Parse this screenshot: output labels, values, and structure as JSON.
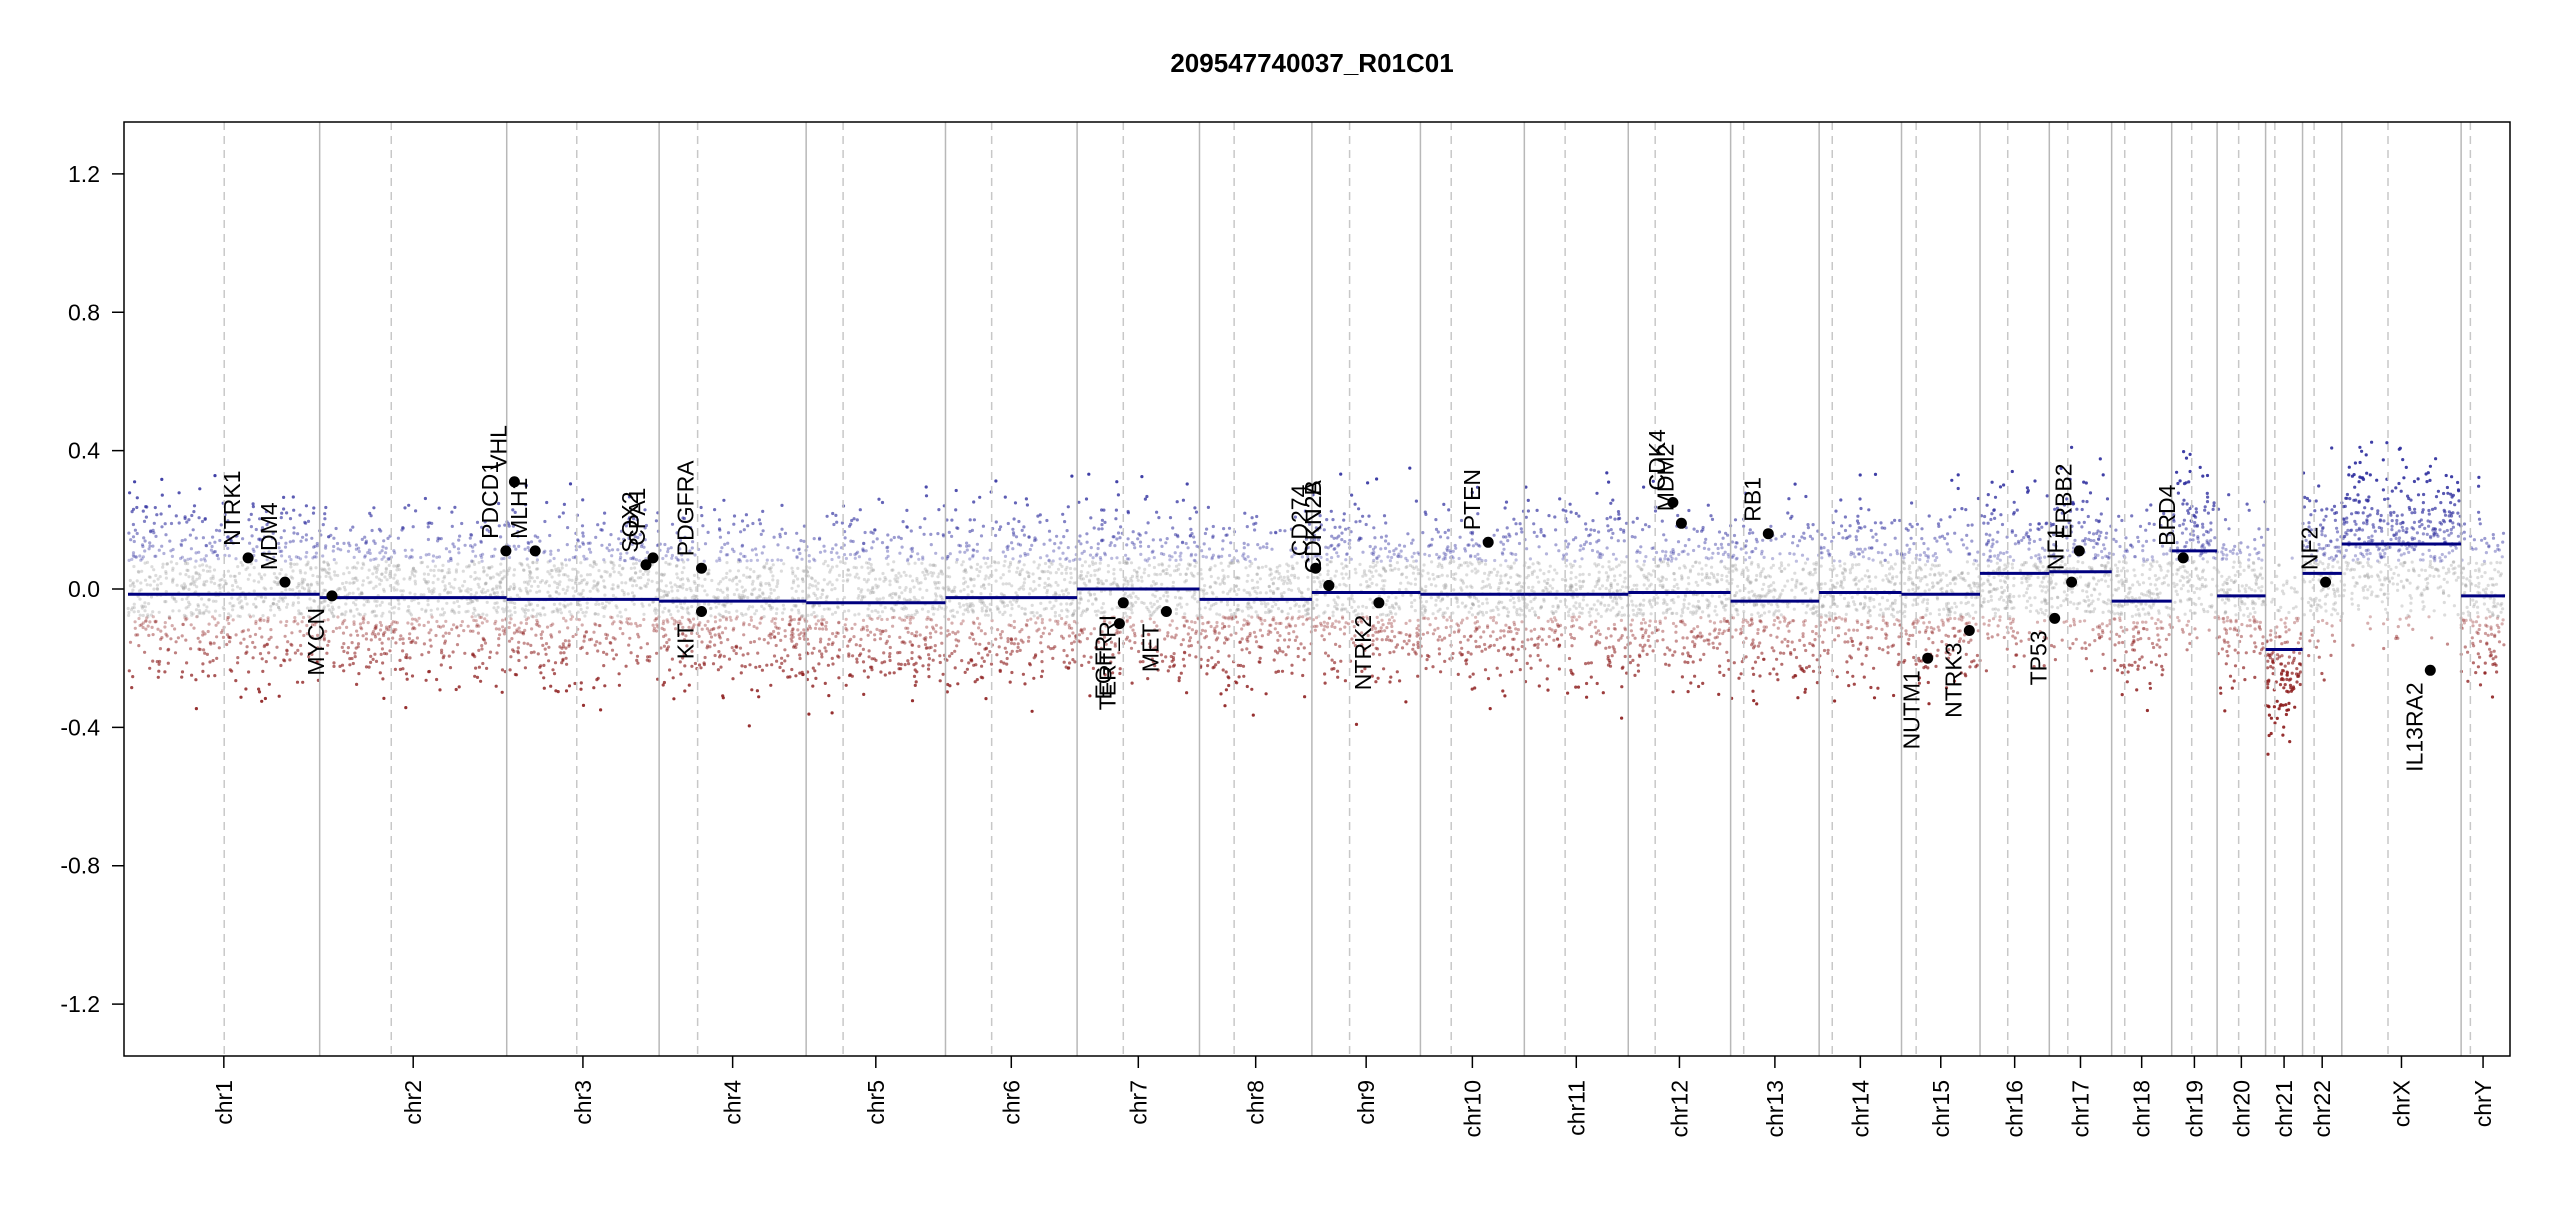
{
  "chart_data": {
    "type": "scatter",
    "title": "209547740037_R01C01",
    "xlabel": "",
    "ylabel": "",
    "ylim": [
      -1.35,
      1.35
    ],
    "yticks": [
      -1.2,
      -0.8,
      -0.4,
      0.0,
      0.4,
      0.8,
      1.2
    ],
    "ytick_labels": [
      "-1.2",
      "-0.8",
      "-0.4",
      "0.0",
      "0.4",
      "0.8",
      "1.2"
    ],
    "grid": false,
    "legend": "none",
    "colors": {
      "segment": "#00007f",
      "gain": "#2a2a9c",
      "loss": "#8b1a1a",
      "neutral": "#9a9a9a",
      "gene_dot": "#000000",
      "chrom_boundary": "#b8b8b8",
      "centromere": "#c8c8c8"
    },
    "chromosomes": [
      {
        "name": "chr1",
        "label": "chr1",
        "size": 249,
        "centro": 125,
        "segments": [
          {
            "from": 0,
            "to": 249,
            "y": -0.015
          }
        ],
        "base": 0.0
      },
      {
        "name": "chr2",
        "label": "chr2",
        "size": 243,
        "centro": 93,
        "segments": [
          {
            "from": 0,
            "to": 243,
            "y": -0.025
          }
        ],
        "base": -0.02
      },
      {
        "name": "chr3",
        "label": "chr3",
        "size": 198,
        "centro": 91,
        "segments": [
          {
            "from": 0,
            "to": 198,
            "y": -0.03
          }
        ],
        "base": -0.02
      },
      {
        "name": "chr4",
        "label": "chr4",
        "size": 191,
        "centro": 50,
        "segments": [
          {
            "from": 0,
            "to": 191,
            "y": -0.035
          }
        ],
        "base": -0.03
      },
      {
        "name": "chr5",
        "label": "chr5",
        "size": 181,
        "centro": 48,
        "segments": [
          {
            "from": 0,
            "to": 181,
            "y": -0.04
          }
        ],
        "base": -0.035
      },
      {
        "name": "chr6",
        "label": "chr6",
        "size": 171,
        "centro": 60,
        "segments": [
          {
            "from": 0,
            "to": 171,
            "y": -0.025
          }
        ],
        "base": -0.02
      },
      {
        "name": "chr7",
        "label": "chr7",
        "size": 159,
        "centro": 60,
        "segments": [
          {
            "from": 0,
            "to": 159,
            "y": 0.0
          }
        ],
        "base": 0.0
      },
      {
        "name": "chr8",
        "label": "chr8",
        "size": 146,
        "centro": 45,
        "segments": [
          {
            "from": 0,
            "to": 146,
            "y": -0.03
          }
        ],
        "base": -0.03
      },
      {
        "name": "chr9",
        "label": "chr9",
        "size": 141,
        "centro": 49,
        "segments": [
          {
            "from": 0,
            "to": 141,
            "y": -0.01
          }
        ],
        "base": -0.01
      },
      {
        "name": "chr10",
        "label": "chr10",
        "size": 135,
        "centro": 40,
        "segments": [
          {
            "from": 0,
            "to": 135,
            "y": -0.015
          }
        ],
        "base": -0.01
      },
      {
        "name": "chr11",
        "label": "chr11",
        "size": 135,
        "centro": 53,
        "segments": [
          {
            "from": 0,
            "to": 135,
            "y": -0.015
          }
        ],
        "base": -0.01
      },
      {
        "name": "chr12",
        "label": "chr12",
        "size": 133,
        "centro": 35,
        "segments": [
          {
            "from": 0,
            "to": 133,
            "y": -0.01
          }
        ],
        "base": -0.01
      },
      {
        "name": "chr13",
        "label": "chr13",
        "size": 115,
        "centro": 17,
        "segments": [
          {
            "from": 0,
            "to": 115,
            "y": -0.035
          }
        ],
        "base": -0.03
      },
      {
        "name": "chr14",
        "label": "chr14",
        "size": 107,
        "centro": 17,
        "segments": [
          {
            "from": 0,
            "to": 107,
            "y": -0.01
          }
        ],
        "base": -0.01
      },
      {
        "name": "chr15",
        "label": "chr15",
        "size": 102,
        "centro": 19,
        "segments": [
          {
            "from": 0,
            "to": 102,
            "y": -0.015
          }
        ],
        "base": -0.015
      },
      {
        "name": "chr16",
        "label": "chr16",
        "size": 90,
        "centro": 36,
        "segments": [
          {
            "from": 0,
            "to": 90,
            "y": 0.045
          }
        ],
        "base": 0.04
      },
      {
        "name": "chr17",
        "label": "chr17",
        "size": 81,
        "centro": 24,
        "segments": [
          {
            "from": 0,
            "to": 81,
            "y": 0.05
          }
        ],
        "base": 0.05
      },
      {
        "name": "chr18",
        "label": "chr18",
        "size": 78,
        "centro": 17,
        "segments": [
          {
            "from": 0,
            "to": 78,
            "y": -0.035
          }
        ],
        "base": -0.03
      },
      {
        "name": "chr19",
        "label": "chr19",
        "size": 59,
        "centro": 26,
        "segments": [
          {
            "from": 0,
            "to": 59,
            "y": 0.11
          }
        ],
        "base": 0.1
      },
      {
        "name": "chr20",
        "label": "chr20",
        "size": 63,
        "centro": 28,
        "segments": [
          {
            "from": 0,
            "to": 63,
            "y": -0.02
          }
        ],
        "base": -0.02
      },
      {
        "name": "chr21",
        "label": "chr21",
        "size": 48,
        "centro": 12,
        "segments": [
          {
            "from": 0,
            "to": 48,
            "y": -0.175
          }
        ],
        "base": -0.18
      },
      {
        "name": "chr22",
        "label": "chr22",
        "size": 51,
        "centro": 15,
        "segments": [
          {
            "from": 0,
            "to": 51,
            "y": 0.045
          }
        ],
        "base": 0.04
      },
      {
        "name": "chrX",
        "label": "chrX",
        "size": 155,
        "centro": 60,
        "segments": [
          {
            "from": 0,
            "to": 155,
            "y": 0.13
          }
        ],
        "base": 0.13
      },
      {
        "name": "chrY",
        "label": "chrY",
        "size": 57,
        "centro": 12,
        "segments": [
          {
            "from": 0,
            "to": 57,
            "y": -0.02
          }
        ],
        "base": -0.02
      }
    ],
    "genes": [
      {
        "name": "NTRK1",
        "chr": "chr1",
        "pos": 156,
        "y": 0.09,
        "label_side": "above"
      },
      {
        "name": "MDM4",
        "chr": "chr1",
        "pos": 204,
        "y": 0.02,
        "label_side": "above"
      },
      {
        "name": "MYCN",
        "chr": "chr2",
        "pos": 16,
        "y": -0.02,
        "label_side": "below"
      },
      {
        "name": "PDCD1",
        "chr": "chr2",
        "pos": 242,
        "y": 0.11,
        "label_side": "above"
      },
      {
        "name": "VHL",
        "chr": "chr3",
        "pos": 10,
        "y": 0.31,
        "label_side": "above"
      },
      {
        "name": "MLH1",
        "chr": "chr3",
        "pos": 37,
        "y": 0.11,
        "label_side": "above"
      },
      {
        "name": "SOX2",
        "chr": "chr3",
        "pos": 181,
        "y": 0.07,
        "label_side": "above"
      },
      {
        "name": "CPA1",
        "chr": "chr3",
        "pos": 190,
        "y": 0.09,
        "label_side": "above"
      },
      {
        "name": "PDGFRA",
        "chr": "chr4",
        "pos": 55,
        "y": 0.06,
        "label_side": "above"
      },
      {
        "name": "KIT",
        "chr": "chr4",
        "pos": 55,
        "y": -0.065,
        "label_side": "below"
      },
      {
        "name": "EGFR",
        "chr": "chr7",
        "pos": 55,
        "y": -0.1,
        "label_side": "below"
      },
      {
        "name": "TERT_RI",
        "chr": "chr7",
        "pos": 60,
        "y": -0.04,
        "label_side": "below"
      },
      {
        "name": "MET",
        "chr": "chr7",
        "pos": 116,
        "y": -0.065,
        "label_side": "below"
      },
      {
        "name": "CD274",
        "chr": "chr9",
        "pos": 5,
        "y": 0.06,
        "label_side": "above"
      },
      {
        "name": "CDKN2A",
        "chr": "chr9",
        "pos": 22,
        "y": 0.01,
        "label_side": "above"
      },
      {
        "name": "CDKN2B",
        "chr": "chr9",
        "pos": 22,
        "y": 0.01,
        "label_side": "above"
      },
      {
        "name": "NTRK2",
        "chr": "chr9",
        "pos": 87,
        "y": -0.04,
        "label_side": "below"
      },
      {
        "name": "PTEN",
        "chr": "chr10",
        "pos": 88,
        "y": 0.135,
        "label_side": "above"
      },
      {
        "name": "CDK4",
        "chr": "chr12",
        "pos": 58,
        "y": 0.25,
        "label_side": "above"
      },
      {
        "name": "MDM2",
        "chr": "chr12",
        "pos": 69,
        "y": 0.19,
        "label_side": "above"
      },
      {
        "name": "RB1",
        "chr": "chr13",
        "pos": 49,
        "y": 0.16,
        "label_side": "above"
      },
      {
        "name": "NUTM1",
        "chr": "chr15",
        "pos": 34,
        "y": -0.2,
        "label_side": "below"
      },
      {
        "name": "NTRK3",
        "chr": "chr15",
        "pos": 88,
        "y": -0.12,
        "label_side": "below"
      },
      {
        "name": "TP53",
        "chr": "chr17",
        "pos": 7,
        "y": -0.085,
        "label_side": "below"
      },
      {
        "name": "NF1",
        "chr": "chr17",
        "pos": 29,
        "y": 0.02,
        "label_side": "above"
      },
      {
        "name": "ERBB2",
        "chr": "chr17",
        "pos": 39,
        "y": 0.11,
        "label_side": "above"
      },
      {
        "name": "BRD4",
        "chr": "chr19",
        "pos": 15,
        "y": 0.09,
        "label_side": "above"
      },
      {
        "name": "NF2",
        "chr": "chr22",
        "pos": 30,
        "y": 0.02,
        "label_side": "above"
      },
      {
        "name": "IL13RA2",
        "chr": "chrX",
        "pos": 115,
        "y": -0.235,
        "label_side": "below"
      }
    ]
  }
}
